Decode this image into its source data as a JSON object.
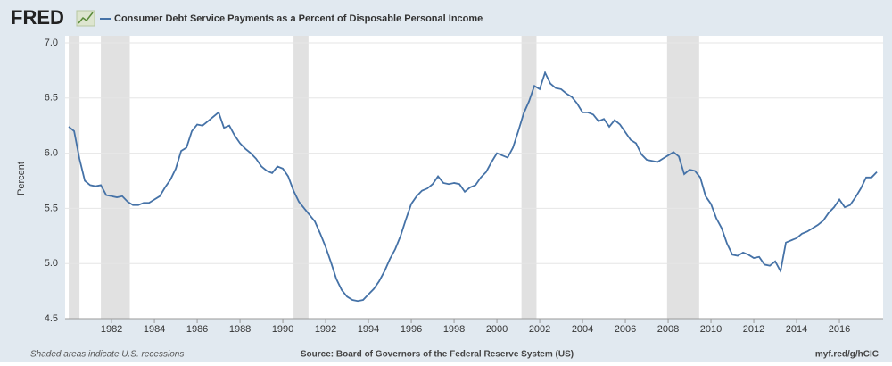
{
  "chart_data": {
    "type": "line",
    "logo": "FRED",
    "title": "Consumer Debt Service Payments as a Percent of Disposable Personal Income",
    "y_label": "Percent",
    "footnote": "Shaded areas indicate U.S. recessions",
    "source": "Source: Board of Governors of the Federal Reserve System (US)",
    "link": "myf.red/g/hCIC",
    "recessions": [
      [
        1980,
        1980.5
      ],
      [
        1981.5,
        1982.85
      ],
      [
        1990.5,
        1991.2
      ],
      [
        2001.15,
        2001.85
      ],
      [
        2007.95,
        2009.45
      ]
    ],
    "recession_color": "#e1e1e1",
    "grid": true,
    "xlim": [
      1979.83,
      2018.04
    ],
    "ylim": [
      4.5,
      7.0
    ],
    "xticks": [
      1982,
      1984,
      1986,
      1988,
      1990,
      1992,
      1994,
      1996,
      1998,
      2000,
      2002,
      2004,
      2006,
      2008,
      2010,
      2012,
      2014,
      2016
    ],
    "yticks": [
      4.5,
      {
        "value": 5,
        "label": "5.0"
      },
      5.5,
      {
        "value": 6,
        "label": "6.0"
      },
      6.5,
      {
        "value": 7,
        "label": "7.0"
      }
    ],
    "x": [
      1980,
      1980.25,
      1980.5,
      1980.75,
      1981,
      1981.25,
      1981.5,
      1981.75,
      1982,
      1982.25,
      1982.5,
      1982.75,
      1983,
      1983.25,
      1983.5,
      1983.75,
      1984,
      1984.25,
      1984.5,
      1984.75,
      1985,
      1985.25,
      1985.5,
      1985.75,
      1986,
      1986.25,
      1986.5,
      1986.75,
      1987,
      1987.25,
      1987.5,
      1987.75,
      1988,
      1988.25,
      1988.5,
      1988.75,
      1989,
      1989.25,
      1989.5,
      1989.75,
      1990,
      1990.25,
      1990.5,
      1990.75,
      1991,
      1991.25,
      1991.5,
      1991.75,
      1992,
      1992.25,
      1992.5,
      1992.75,
      1993,
      1993.25,
      1993.5,
      1993.75,
      1994,
      1994.25,
      1994.5,
      1994.75,
      1995,
      1995.25,
      1995.5,
      1995.75,
      1996,
      1996.25,
      1996.5,
      1996.75,
      1997,
      1997.25,
      1997.5,
      1997.75,
      1998,
      1998.25,
      1998.5,
      1998.75,
      1999,
      1999.25,
      1999.5,
      1999.75,
      2000,
      2000.25,
      2000.5,
      2000.75,
      2001,
      2001.25,
      2001.5,
      2001.75,
      2002,
      2002.25,
      2002.5,
      2002.75,
      2003,
      2003.25,
      2003.5,
      2003.75,
      2004,
      2004.25,
      2004.5,
      2004.75,
      2005,
      2005.25,
      2005.5,
      2005.75,
      2006,
      2006.25,
      2006.5,
      2006.75,
      2007,
      2007.25,
      2007.5,
      2007.75,
      2008,
      2008.25,
      2008.5,
      2008.75,
      2009,
      2009.25,
      2009.5,
      2009.75,
      2010,
      2010.25,
      2010.5,
      2010.75,
      2011,
      2011.25,
      2011.5,
      2011.75,
      2012,
      2012.25,
      2012.5,
      2012.75,
      2013,
      2013.25,
      2013.5,
      2013.75,
      2014,
      2014.25,
      2014.5,
      2014.75,
      2015,
      2015.25,
      2015.5,
      2015.75,
      2016,
      2016.25,
      2016.5,
      2016.75,
      2017,
      2017.25,
      2017.5,
      2017.75
    ],
    "series": [
      {
        "name": "Consumer Debt Service Payments as a Percent of Disposable Personal Income",
        "color": "#4572a7",
        "values": [
          6.24,
          6.2,
          5.95,
          5.75,
          5.71,
          5.7,
          5.71,
          5.62,
          5.61,
          5.6,
          5.61,
          5.56,
          5.53,
          5.53,
          5.55,
          5.55,
          5.58,
          5.61,
          5.69,
          5.76,
          5.86,
          6.02,
          6.05,
          6.2,
          6.26,
          6.25,
          6.29,
          6.33,
          6.37,
          6.23,
          6.25,
          6.16,
          6.09,
          6.04,
          6.0,
          5.95,
          5.88,
          5.84,
          5.82,
          5.88,
          5.86,
          5.79,
          5.66,
          5.56,
          5.5,
          5.44,
          5.38,
          5.27,
          5.15,
          5.01,
          4.86,
          4.76,
          4.7,
          4.67,
          4.66,
          4.67,
          4.72,
          4.77,
          4.84,
          4.93,
          5.04,
          5.13,
          5.25,
          5.4,
          5.54,
          5.61,
          5.66,
          5.68,
          5.72,
          5.79,
          5.73,
          5.72,
          5.73,
          5.72,
          5.65,
          5.69,
          5.71,
          5.78,
          5.83,
          5.92,
          6.0,
          5.98,
          5.96,
          6.05,
          6.2,
          6.36,
          6.47,
          6.61,
          6.58,
          6.73,
          6.63,
          6.59,
          6.58,
          6.54,
          6.51,
          6.45,
          6.37,
          6.37,
          6.35,
          6.29,
          6.31,
          6.24,
          6.3,
          6.26,
          6.19,
          6.12,
          6.09,
          5.99,
          5.94,
          5.93,
          5.92,
          5.95,
          5.98,
          6.01,
          5.97,
          5.81,
          5.85,
          5.84,
          5.78,
          5.61,
          5.54,
          5.41,
          5.32,
          5.18,
          5.08,
          5.07,
          5.1,
          5.08,
          5.05,
          5.06,
          4.99,
          4.98,
          5.02,
          4.93,
          5.19,
          5.21,
          5.23,
          5.27,
          5.29,
          5.32,
          5.35,
          5.39,
          5.46,
          5.51,
          5.58,
          5.51,
          5.53,
          5.6,
          5.68,
          5.78,
          5.78,
          5.83
        ]
      }
    ]
  }
}
